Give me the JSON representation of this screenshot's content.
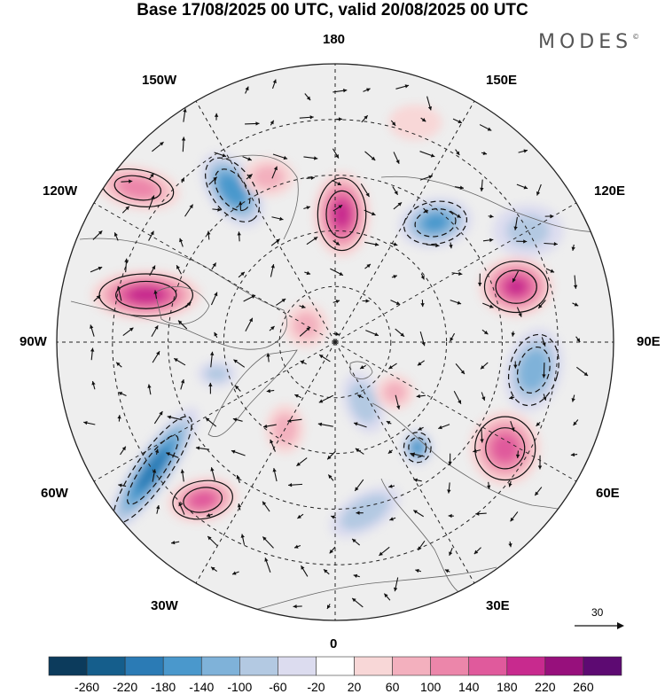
{
  "title": "Base 17/08/2025 00 UTC, valid 20/08/2025 00 UTC",
  "logo": "MODES",
  "logo_mark": "©",
  "longitude_labels": {
    "top": "180",
    "bottom": "0",
    "left": "90W",
    "right": "90E",
    "upper_left_near": "150W",
    "upper_left_far": "120W",
    "upper_right_near": "150E",
    "upper_right_far": "120E",
    "lower_left_far": "60W",
    "lower_left_near": "30W",
    "lower_right_far": "60E",
    "lower_right_near": "30E"
  },
  "reference_vector": {
    "label": "30"
  },
  "colorbar": {
    "ticks": [
      "-260",
      "-220",
      "-180",
      "-140",
      "-100",
      "-60",
      "-20",
      "20",
      "60",
      "100",
      "140",
      "180",
      "220",
      "260"
    ],
    "colors": [
      "#0c3b5c",
      "#155e8c",
      "#2b7bb5",
      "#4a98cc",
      "#7fb2d9",
      "#b3c9e2",
      "#dcdcef",
      "#ffffff",
      "#f8d7d7",
      "#f3b0be",
      "#ec86aa",
      "#e05a9c",
      "#c82a8e",
      "#97107c",
      "#5d0a72"
    ]
  },
  "anomaly_centers": [
    {
      "lon": 177,
      "colat": 23,
      "value": 190,
      "rx": 32,
      "ry": 48,
      "angle": 0
    },
    {
      "lon": -146,
      "colat": 33,
      "value": -170,
      "rx": 48,
      "ry": 28,
      "angle": 55
    },
    {
      "lon": -104,
      "colat": 35,
      "value": 200,
      "rx": 62,
      "ry": 28,
      "angle": 0
    },
    {
      "lon": -128,
      "colat": 45,
      "value": 110,
      "rx": 48,
      "ry": 24,
      "angle": 10
    },
    {
      "lon": -55,
      "colat": 40,
      "value": -200,
      "rx": 85,
      "ry": 22,
      "angle": -55
    },
    {
      "lon": -40,
      "colat": 37,
      "value": 150,
      "rx": 40,
      "ry": 25,
      "angle": -10
    },
    {
      "lon": 140,
      "colat": 28,
      "value": -140,
      "rx": 42,
      "ry": 28,
      "angle": -10
    },
    {
      "lon": 107,
      "colat": 34,
      "value": 180,
      "rx": 42,
      "ry": 34,
      "angle": 0
    },
    {
      "lon": 82,
      "colat": 36,
      "value": -120,
      "rx": 32,
      "ry": 48,
      "angle": 15
    },
    {
      "lon": 58,
      "colat": 36,
      "value": 150,
      "rx": 40,
      "ry": 42,
      "angle": 0
    },
    {
      "lon": 38,
      "colat": 24,
      "value": -150,
      "rx": 18,
      "ry": 20,
      "angle": 0
    },
    {
      "lon": 10,
      "colat": 31,
      "value": -90,
      "rx": 44,
      "ry": 22,
      "angle": -30
    },
    {
      "lon": 25,
      "colat": 12,
      "value": -80,
      "rx": 22,
      "ry": 36,
      "angle": -20
    },
    {
      "lon": 50,
      "colat": 14,
      "value": 60,
      "rx": 22,
      "ry": 20,
      "angle": 0
    },
    {
      "lon": -30,
      "colat": 18,
      "value": 70,
      "rx": 22,
      "ry": 28,
      "angle": 0
    },
    {
      "lon": -120,
      "colat": 6,
      "value": 60,
      "rx": 25,
      "ry": 25,
      "angle": 0
    },
    {
      "lon": -158,
      "colat": 32,
      "value": 60,
      "rx": 30,
      "ry": 22,
      "angle": 0
    },
    {
      "lon": 120,
      "colat": 40,
      "value": -60,
      "rx": 40,
      "ry": 30,
      "angle": 0
    },
    {
      "lon": -75,
      "colat": 22,
      "value": -60,
      "rx": 22,
      "ry": 15,
      "angle": 0
    },
    {
      "lon": 160,
      "colat": 42,
      "value": 40,
      "rx": 30,
      "ry": 20,
      "angle": 0
    }
  ]
}
